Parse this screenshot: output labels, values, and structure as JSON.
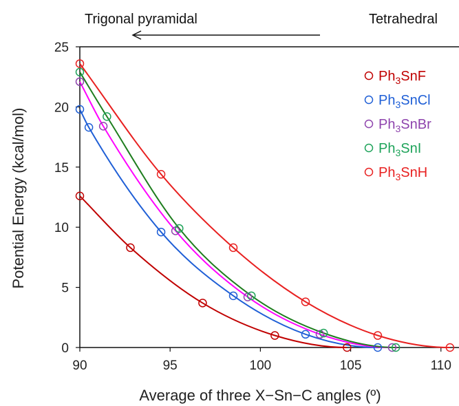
{
  "chart_data": {
    "type": "scatter",
    "title": "",
    "xlabel": "Average of three X−Sn−C angles (º)",
    "ylabel": "Potential Energy (kcal/mol)",
    "xlim": [
      90,
      111
    ],
    "ylim": [
      0,
      25
    ],
    "xticks": [
      90,
      95,
      100,
      105,
      110
    ],
    "yticks": [
      0,
      5,
      10,
      15,
      20,
      25
    ],
    "grid": false,
    "legend_position": "top-right",
    "annotations": {
      "left": "Trigonal pyramidal",
      "right": "Tetrahedral",
      "arrow": "right-to-left"
    },
    "series": [
      {
        "name": "Ph3SnF",
        "label_parts": [
          "Ph",
          "3",
          "SnF"
        ],
        "color": "#c00000",
        "points": [
          [
            90.0,
            12.6
          ],
          [
            92.8,
            8.3
          ],
          [
            96.8,
            3.7
          ],
          [
            100.8,
            1.0
          ],
          [
            104.8,
            0.0
          ]
        ]
      },
      {
        "name": "Ph3SnCl",
        "label_parts": [
          "Ph",
          "3",
          "SnCl"
        ],
        "color": "#1f5fd6",
        "points": [
          [
            90.0,
            19.8
          ],
          [
            90.5,
            18.3
          ],
          [
            94.5,
            9.6
          ],
          [
            98.5,
            4.3
          ],
          [
            102.5,
            1.1
          ],
          [
            106.5,
            0.0
          ]
        ]
      },
      {
        "name": "Ph3SnBr",
        "label_parts": [
          "Ph",
          "3",
          "SnBr"
        ],
        "color": "#8e44ad",
        "curve_color": "#ff00ff",
        "points": [
          [
            90.0,
            22.1
          ],
          [
            91.3,
            18.4
          ],
          [
            95.3,
            9.7
          ],
          [
            99.3,
            4.2
          ],
          [
            103.3,
            1.1
          ],
          [
            107.3,
            0.0
          ]
        ]
      },
      {
        "name": "Ph3SnI",
        "label_parts": [
          "Ph",
          "3",
          "SnI"
        ],
        "color": "#1ea35a",
        "curve_color": "#1e7d1e",
        "points": [
          [
            90.0,
            22.9
          ],
          [
            91.5,
            19.2
          ],
          [
            95.5,
            9.9
          ],
          [
            99.5,
            4.3
          ],
          [
            103.5,
            1.2
          ],
          [
            107.5,
            0.0
          ]
        ]
      },
      {
        "name": "Ph3SnH",
        "label_parts": [
          "Ph",
          "3",
          "SnH"
        ],
        "color": "#e82020",
        "points": [
          [
            90.0,
            23.6
          ],
          [
            94.5,
            14.4
          ],
          [
            98.5,
            8.3
          ],
          [
            102.5,
            3.8
          ],
          [
            106.5,
            1.0
          ],
          [
            110.5,
            0.0
          ]
        ]
      }
    ]
  }
}
